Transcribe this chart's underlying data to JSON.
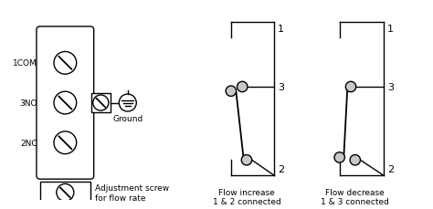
{
  "bg_color": "#ffffff",
  "line_color": "#000000",
  "labels": {
    "1COM": "1COM",
    "3NO": "3NO",
    "2NC": "2NC",
    "ground": "Ground",
    "adj_screw": "Adjustment screw\nfor flow rate",
    "flow_increase": "Flow increase\n1 & 2 connected",
    "flow_decrease": "Flow decrease\n1 & 3 connected"
  }
}
